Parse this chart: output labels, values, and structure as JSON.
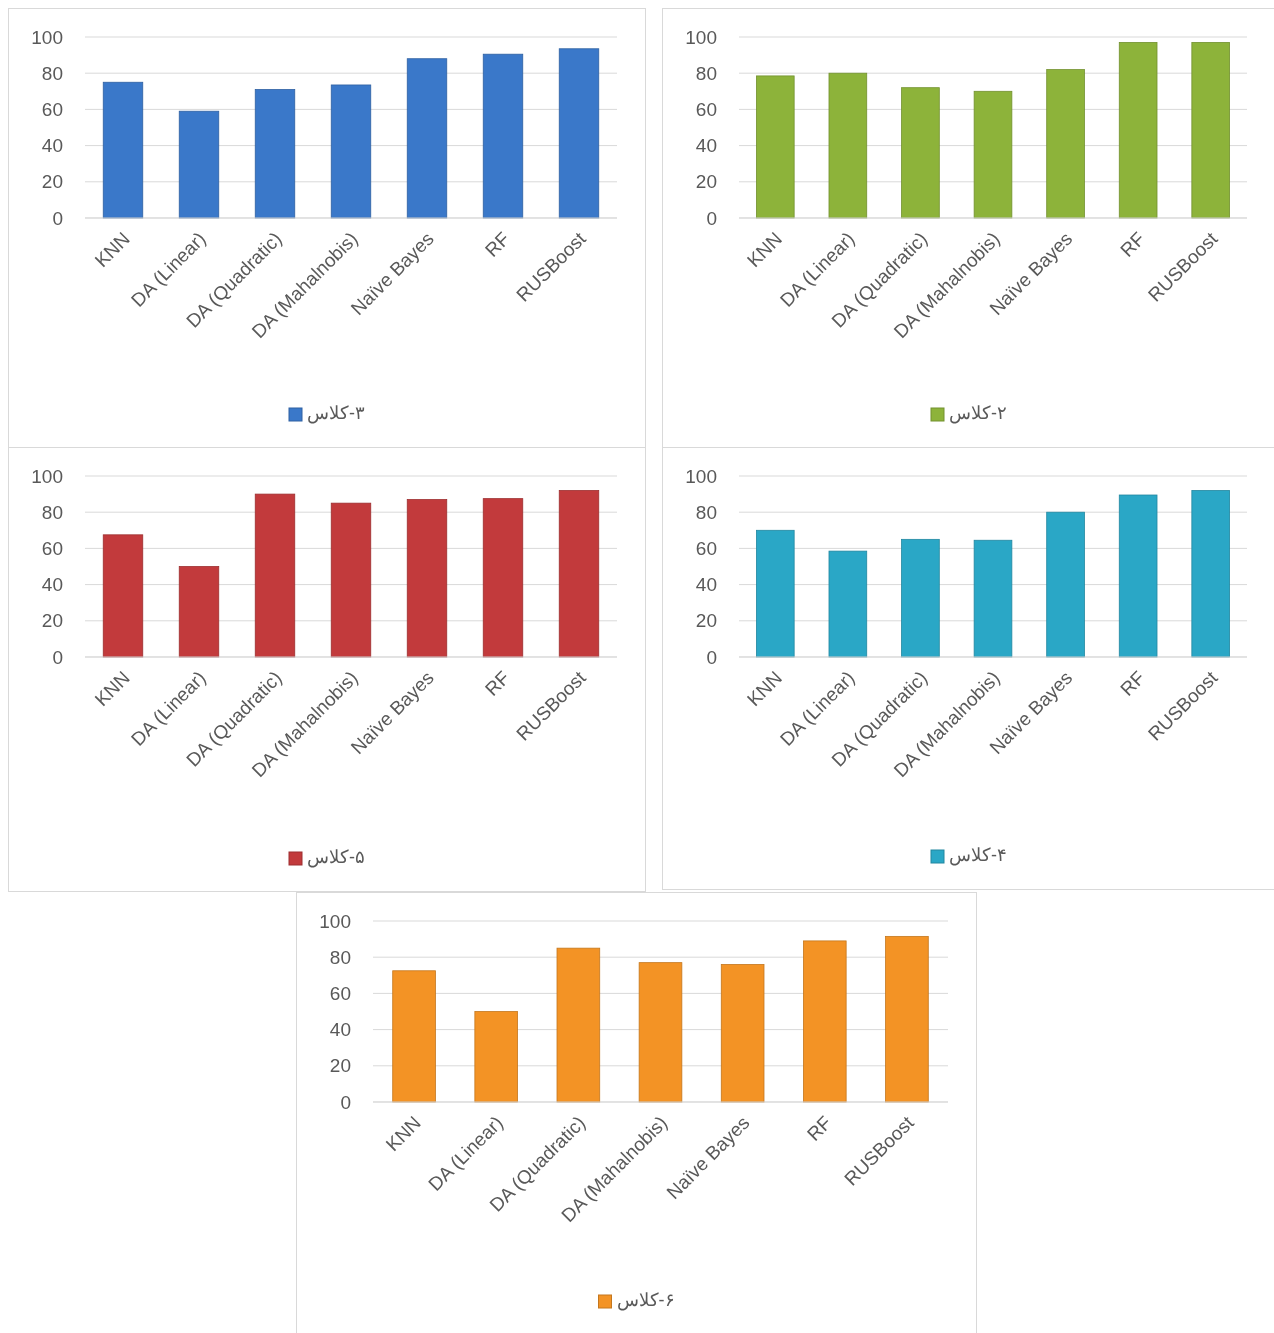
{
  "chart_data": [
    {
      "type": "bar",
      "categories": [
        "KNN",
        "DA (Linear)",
        "DA (Quadratic)",
        "DA (Mahalnobis)",
        "Naïve Bayes",
        "RF",
        "RUSBoost"
      ],
      "series": [
        {
          "name": "۳-کلاس",
          "color": "#3a78c9",
          "values": [
            75,
            59,
            71,
            73.5,
            88,
            90.5,
            93.5
          ]
        }
      ],
      "ylim": [
        0,
        100
      ],
      "yticks": [
        0,
        20,
        40,
        60,
        80,
        100
      ],
      "grid": "y",
      "legend": "bottom"
    },
    {
      "type": "bar",
      "categories": [
        "KNN",
        "DA (Linear)",
        "DA (Quadratic)",
        "DA (Mahalnobis)",
        "Naïve Bayes",
        "RF",
        "RUSBoost"
      ],
      "series": [
        {
          "name": "۲-کلاس",
          "color": "#8db33a",
          "values": [
            78.5,
            80,
            72,
            70,
            82,
            97,
            97
          ]
        }
      ],
      "ylim": [
        0,
        100
      ],
      "yticks": [
        0,
        20,
        40,
        60,
        80,
        100
      ],
      "grid": "y",
      "legend": "bottom"
    },
    {
      "type": "bar",
      "categories": [
        "KNN",
        "DA (Linear)",
        "DA (Quadratic)",
        "DA (Mahalnobis)",
        "Naïve Bayes",
        "RF",
        "RUSBoost"
      ],
      "series": [
        {
          "name": "۵-کلاس",
          "color": "#c23a3c",
          "values": [
            67.5,
            50,
            90,
            85,
            87,
            87.5,
            92
          ]
        }
      ],
      "ylim": [
        0,
        100
      ],
      "yticks": [
        0,
        20,
        40,
        60,
        80,
        100
      ],
      "grid": "y",
      "legend": "bottom"
    },
    {
      "type": "bar",
      "categories": [
        "KNN",
        "DA (Linear)",
        "DA (Quadratic)",
        "DA (Mahalnobis)",
        "Naïve Bayes",
        "RF",
        "RUSBoost"
      ],
      "series": [
        {
          "name": "۴-کلاس",
          "color": "#2aa7c6",
          "values": [
            70,
            58.5,
            65,
            64.5,
            80,
            89.5,
            92
          ]
        }
      ],
      "ylim": [
        0,
        100
      ],
      "yticks": [
        0,
        20,
        40,
        60,
        80,
        100
      ],
      "grid": "y",
      "legend": "bottom"
    },
    {
      "type": "bar",
      "categories": [
        "KNN",
        "DA (Linear)",
        "DA (Quadratic)",
        "DA (Mahalnobis)",
        "Naïve Bayes",
        "RF",
        "RUSBoost"
      ],
      "series": [
        {
          "name": "۶-کلاس",
          "color": "#f39325",
          "values": [
            72.5,
            50,
            85,
            77,
            76,
            89,
            91.5
          ]
        }
      ],
      "ylim": [
        0,
        100
      ],
      "yticks": [
        0,
        20,
        40,
        60,
        80,
        100
      ],
      "grid": "y",
      "legend": "bottom"
    }
  ]
}
